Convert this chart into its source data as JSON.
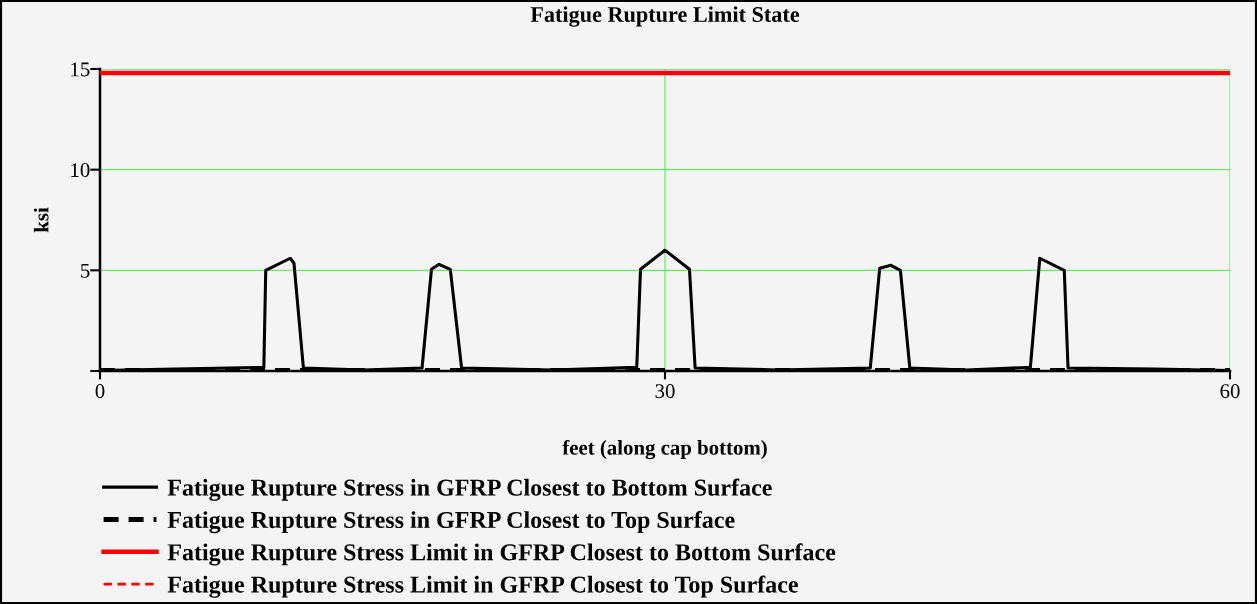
{
  "chart_data": {
    "type": "line",
    "title": "Fatigue Rupture Limit State",
    "xlabel": "feet (along cap bottom)",
    "ylabel": "ksi",
    "xlim": [
      0,
      60
    ],
    "xticks": [
      0,
      30,
      60
    ],
    "ylim": [
      0,
      15
    ],
    "yticks": [
      {
        "value": 0,
        "label": null
      },
      5,
      10,
      15
    ],
    "grid": true,
    "legend": "bottom",
    "marker": "none",
    "series": [
      {
        "name": "Fatigue Rupture Stress in GFRP Closest to Bottom Surface",
        "color": "#000000",
        "line_style": "solid",
        "x": [
          0,
          4,
          8.7,
          8.8,
          10.1,
          10.3,
          10.8,
          14,
          17.1,
          17.6,
          18.0,
          18.6,
          19.2,
          24,
          28.5,
          28.7,
          30.0,
          31.3,
          31.6,
          36,
          40.9,
          41.4,
          42.0,
          42.5,
          43.0,
          46,
          49.4,
          49.9,
          51.2,
          51.4,
          56,
          60
        ],
        "values": [
          0.02,
          0.1,
          0.18,
          5.0,
          5.6,
          5.35,
          0.15,
          0.05,
          0.15,
          5.05,
          5.3,
          5.05,
          0.15,
          0.05,
          0.18,
          5.05,
          6.0,
          5.05,
          0.15,
          0.05,
          0.15,
          5.1,
          5.25,
          5.0,
          0.15,
          0.05,
          0.18,
          5.6,
          5.0,
          0.15,
          0.1,
          0.02
        ]
      },
      {
        "name": "Fatigue Rupture Stress in GFRP Closest to Top Surface",
        "color": "#000000",
        "line_style": "dashed",
        "x": [
          0,
          15,
          30,
          45,
          60
        ],
        "values": [
          0.02,
          0.02,
          0.02,
          0.02,
          0.02
        ]
      },
      {
        "name": "Fatigue Rupture Stress Limit in GFRP Closest to Bottom Surface",
        "color": "#ff0000",
        "line_style": "solid",
        "x": [
          0,
          60
        ],
        "values": [
          14.8,
          14.8
        ]
      },
      {
        "name": "Fatigue Rupture Stress Limit in GFRP Closest to Top Surface",
        "color": "#ff0000",
        "line_style": "dashed",
        "values": [
          null
        ]
      }
    ]
  }
}
